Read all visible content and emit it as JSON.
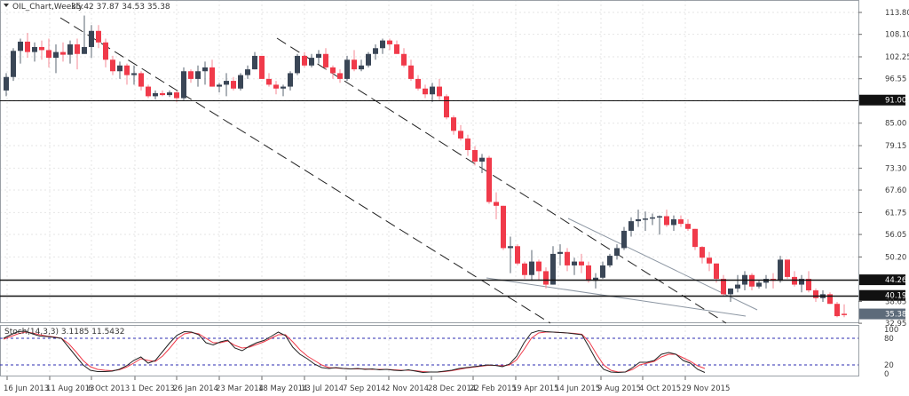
{
  "header": {
    "symbol": "OIL_Chart,Weekly",
    "ohlc": "35.42 37.87 34.53 35.38"
  },
  "indicator": {
    "label": "Stoch(14,3,3) 3.1185 11.5432",
    "levels": [
      80,
      20
    ],
    "scale_labels": [
      "100",
      "80",
      "20",
      "0"
    ]
  },
  "colors": {
    "bull": "#3a4656",
    "bear": "#f03a4a",
    "grid": "#e6e6e6",
    "level_line": "#2b2bb0",
    "stoch_main": "#222222",
    "stoch_signal": "#f03a4a",
    "trendline": "#222222",
    "trendline_light": "#9aa3ad"
  },
  "chart_data": [
    {
      "type": "candlestick",
      "title": "OIL_Chart,Weekly 35.42 37.87 34.53 35.38",
      "xlabel": "",
      "ylabel": "Price",
      "ylim": [
        31.0,
        116.0
      ],
      "grid": true,
      "y_ticks": [
        "113.80",
        "108.10",
        "102.25",
        "96.55",
        "91.00",
        "85.00",
        "79.15",
        "73.30",
        "67.60",
        "61.75",
        "56.05",
        "50.20",
        "44.26",
        "40.19",
        "38.65",
        "35.38",
        "32.95"
      ],
      "x_ticks": [
        "16 Jun 2013",
        "11 Aug 2013",
        "6 Oct 2013",
        "1 Dec 2013",
        "26 Jan 2014",
        "23 Mar 2014",
        "18 May 2014",
        "13 Jul 2014",
        "7 Sep 2014",
        "2 Nov 2014",
        "28 Dec 2014",
        "22 Feb 2015",
        "19 Apr 2015",
        "14 Jun 2015",
        "9 Aug 2015",
        "4 Oct 2015",
        "29 Nov 2015"
      ],
      "horizontal_levels": [
        {
          "price": 91.0,
          "label": "91.00"
        },
        {
          "price": 44.26,
          "label": "44.26"
        },
        {
          "price": 40.19,
          "label": "40.19"
        }
      ],
      "current_price": {
        "price": 35.38,
        "label": "35.38"
      },
      "candles": [
        [
          93.5,
          98.0,
          92.0,
          97.0
        ],
        [
          97.0,
          104.5,
          96.0,
          103.8
        ],
        [
          103.8,
          107.0,
          100.5,
          106.2
        ],
        [
          106.2,
          108.5,
          102.0,
          103.5
        ],
        [
          103.5,
          106.0,
          101.0,
          104.8
        ],
        [
          104.8,
          106.5,
          101.5,
          104.0
        ],
        [
          104.0,
          107.0,
          99.5,
          102.0
        ],
        [
          102.0,
          105.5,
          98.0,
          103.5
        ],
        [
          103.5,
          106.0,
          101.0,
          102.8
        ],
        [
          102.8,
          106.5,
          100.5,
          105.5
        ],
        [
          105.5,
          107.0,
          99.0,
          103.0
        ],
        [
          103.0,
          113.0,
          104.0,
          104.8
        ],
        [
          104.8,
          110.5,
          102.0,
          109.0
        ],
        [
          109.0,
          110.5,
          104.5,
          106.0
        ],
        [
          106.0,
          107.0,
          99.5,
          101.5
        ],
        [
          101.5,
          102.5,
          97.5,
          98.5
        ],
        [
          98.5,
          101.0,
          96.5,
          100.0
        ],
        [
          100.0,
          100.5,
          95.0,
          97.5
        ],
        [
          97.5,
          100.0,
          95.0,
          98.0
        ],
        [
          98.0,
          98.5,
          93.5,
          94.5
        ],
        [
          94.5,
          95.0,
          91.5,
          92.0
        ],
        [
          92.0,
          93.5,
          91.2,
          92.8
        ],
        [
          92.8,
          93.5,
          92.0,
          92.3
        ],
        [
          92.3,
          93.5,
          91.8,
          93.0
        ],
        [
          93.0,
          93.5,
          90.5,
          91.5
        ],
        [
          91.5,
          99.5,
          91.0,
          98.5
        ],
        [
          98.5,
          99.0,
          95.5,
          96.5
        ],
        [
          96.5,
          100.0,
          94.5,
          98.5
        ],
        [
          98.5,
          101.0,
          95.0,
          99.5
        ],
        [
          99.5,
          101.5,
          95.0,
          94.5
        ],
        [
          94.5,
          95.5,
          93.0,
          95.0
        ],
        [
          95.0,
          98.0,
          92.0,
          96.0
        ],
        [
          96.0,
          97.0,
          93.5,
          94.0
        ],
        [
          94.0,
          98.0,
          93.5,
          97.5
        ],
        [
          97.5,
          100.0,
          96.5,
          99.0
        ],
        [
          99.0,
          103.5,
          99.0,
          102.5
        ],
        [
          102.5,
          102.5,
          97.5,
          96.5
        ],
        [
          96.5,
          98.0,
          94.5,
          95.0
        ],
        [
          95.0,
          96.0,
          92.5,
          94.0
        ],
        [
          94.0,
          95.0,
          92.0,
          94.5
        ],
        [
          94.5,
          98.5,
          93.5,
          98.0
        ],
        [
          98.0,
          103.0,
          97.5,
          102.5
        ],
        [
          102.5,
          103.5,
          99.5,
          100.0
        ],
        [
          100.0,
          103.0,
          99.5,
          102.0
        ],
        [
          102.0,
          104.0,
          100.5,
          103.0
        ],
        [
          103.0,
          104.5,
          99.0,
          99.5
        ],
        [
          99.5,
          100.0,
          96.5,
          98.0
        ],
        [
          98.0,
          99.0,
          95.5,
          96.5
        ],
        [
          96.5,
          102.5,
          96.0,
          101.5
        ],
        [
          101.5,
          104.0,
          98.5,
          99.0
        ],
        [
          99.0,
          101.5,
          98.5,
          100.0
        ],
        [
          100.0,
          103.5,
          99.5,
          103.0
        ],
        [
          103.0,
          105.5,
          101.5,
          104.5
        ],
        [
          104.5,
          107.0,
          103.0,
          106.5
        ],
        [
          106.5,
          107.0,
          104.0,
          105.5
        ],
        [
          105.5,
          106.5,
          103.0,
          103.0
        ],
        [
          103.0,
          104.5,
          99.5,
          100.0
        ],
        [
          100.0,
          101.5,
          96.0,
          96.5
        ],
        [
          96.5,
          97.5,
          93.5,
          94.0
        ],
        [
          94.0,
          95.0,
          91.5,
          92.5
        ],
        [
          92.5,
          95.5,
          90.5,
          94.5
        ],
        [
          94.5,
          96.5,
          91.0,
          92.0
        ],
        [
          92.0,
          92.5,
          86.0,
          86.5
        ],
        [
          86.5,
          87.0,
          82.0,
          83.0
        ],
        [
          83.0,
          84.5,
          80.5,
          81.0
        ],
        [
          81.0,
          82.0,
          76.5,
          78.0
        ],
        [
          78.0,
          79.0,
          74.0,
          75.0
        ],
        [
          75.0,
          77.0,
          72.0,
          76.0
        ],
        [
          76.0,
          76.5,
          64.0,
          64.5
        ],
        [
          64.5,
          67.0,
          60.0,
          63.5
        ],
        [
          63.5,
          63.5,
          52.0,
          52.5
        ],
        [
          52.5,
          55.5,
          46.0,
          53.0
        ],
        [
          53.0,
          53.5,
          48.0,
          48.5
        ],
        [
          48.5,
          49.0,
          44.5,
          45.5
        ],
        [
          45.5,
          52.0,
          44.0,
          49.0
        ],
        [
          49.0,
          49.5,
          44.0,
          46.5
        ],
        [
          46.5,
          47.5,
          42.0,
          43.0
        ],
        [
          43.0,
          53.0,
          44.0,
          51.0
        ],
        [
          51.0,
          53.5,
          48.0,
          51.5
        ],
        [
          51.5,
          52.5,
          46.5,
          48.0
        ],
        [
          48.0,
          50.0,
          45.5,
          49.0
        ],
        [
          49.0,
          51.0,
          46.0,
          48.0
        ],
        [
          48.0,
          49.0,
          43.5,
          44.0
        ],
        [
          44.0,
          46.0,
          42.0,
          44.8
        ],
        [
          44.8,
          49.0,
          44.5,
          48.0
        ],
        [
          48.0,
          51.0,
          47.5,
          50.5
        ],
        [
          50.5,
          53.5,
          49.5,
          52.5
        ],
        [
          52.5,
          58.0,
          52.0,
          57.0
        ],
        [
          57.0,
          60.5,
          55.5,
          59.5
        ],
        [
          59.5,
          62.5,
          58.0,
          60.0
        ],
        [
          60.0,
          62.0,
          57.0,
          60.2
        ],
        [
          60.2,
          61.5,
          58.5,
          60.5
        ],
        [
          60.5,
          61.0,
          56.0,
          60.8
        ],
        [
          60.8,
          62.5,
          58.0,
          58.5
        ],
        [
          58.5,
          61.0,
          57.0,
          60.0
        ],
        [
          60.0,
          61.0,
          58.0,
          58.8
        ],
        [
          58.8,
          60.0,
          57.0,
          57.5
        ],
        [
          57.5,
          57.5,
          52.0,
          52.8
        ],
        [
          52.8,
          53.0,
          48.5,
          50.0
        ],
        [
          50.0,
          51.5,
          46.5,
          48.5
        ],
        [
          48.5,
          48.5,
          43.5,
          44.5
        ],
        [
          44.5,
          45.5,
          40.0,
          40.5
        ],
        [
          40.5,
          42.0,
          38.5,
          42.0
        ],
        [
          42.0,
          45.5,
          41.0,
          43.0
        ],
        [
          43.0,
          46.5,
          41.5,
          45.5
        ],
        [
          45.5,
          46.0,
          41.5,
          42.5
        ],
        [
          42.5,
          44.0,
          42.0,
          43.5
        ],
        [
          43.5,
          45.5,
          42.0,
          44.5
        ],
        [
          44.5,
          46.0,
          42.0,
          44.0
        ],
        [
          44.0,
          50.5,
          43.5,
          49.5
        ],
        [
          49.5,
          49.0,
          44.5,
          45.0
        ],
        [
          45.0,
          46.5,
          42.5,
          43.0
        ],
        [
          43.0,
          45.5,
          41.0,
          44.5
        ],
        [
          44.5,
          46.5,
          41.0,
          41.5
        ],
        [
          41.5,
          42.0,
          38.5,
          39.5
        ],
        [
          39.5,
          41.5,
          38.5,
          40.5
        ],
        [
          40.5,
          41.0,
          38.0,
          38.0
        ],
        [
          38.0,
          38.5,
          34.5,
          34.8
        ],
        [
          35.42,
          37.87,
          34.53,
          35.38
        ]
      ]
    },
    {
      "type": "line",
      "title": "Stoch(14,3,3) 3.1185 11.5432",
      "ylim": [
        0,
        100
      ],
      "levels": [
        80,
        20
      ],
      "series": [
        {
          "name": "%K",
          "values": [
            80,
            88,
            95,
            96,
            90,
            85,
            84,
            82,
            80,
            60,
            40,
            20,
            8,
            5,
            5,
            6,
            10,
            18,
            30,
            38,
            24,
            30,
            50,
            70,
            87,
            95,
            94,
            88,
            70,
            65,
            72,
            76,
            58,
            52,
            62,
            70,
            75,
            84,
            94,
            86,
            60,
            44,
            34,
            22,
            14,
            12,
            14,
            12,
            11,
            12,
            10,
            11,
            9,
            10,
            8,
            7,
            9,
            6,
            3,
            4,
            4,
            6,
            8,
            12,
            14,
            16,
            18,
            20,
            19,
            16,
            22,
            40,
            70,
            92,
            97,
            95,
            94,
            93,
            92,
            90,
            88,
            60,
            30,
            10,
            4,
            3,
            4,
            14,
            26,
            26,
            30,
            44,
            48,
            44,
            30,
            24,
            10,
            3
          ]
        },
        {
          "name": "%D",
          "values": [
            78,
            84,
            90,
            94,
            92,
            88,
            85,
            83,
            80,
            68,
            50,
            30,
            16,
            10,
            8,
            7,
            9,
            15,
            24,
            34,
            30,
            28,
            40,
            58,
            78,
            90,
            93,
            90,
            80,
            70,
            70,
            74,
            64,
            58,
            60,
            66,
            72,
            80,
            88,
            88,
            72,
            54,
            40,
            30,
            20,
            14,
            13,
            12,
            11,
            11,
            11,
            10,
            10,
            10,
            9,
            8,
            8,
            7,
            5,
            4,
            4,
            5,
            7,
            10,
            13,
            15,
            17,
            19,
            19,
            18,
            20,
            32,
            55,
            80,
            92,
            94,
            94,
            93,
            92,
            91,
            89,
            72,
            45,
            20,
            8,
            4,
            4,
            10,
            20,
            24,
            28,
            38,
            44,
            44,
            36,
            28,
            18,
            12
          ]
        }
      ]
    }
  ]
}
